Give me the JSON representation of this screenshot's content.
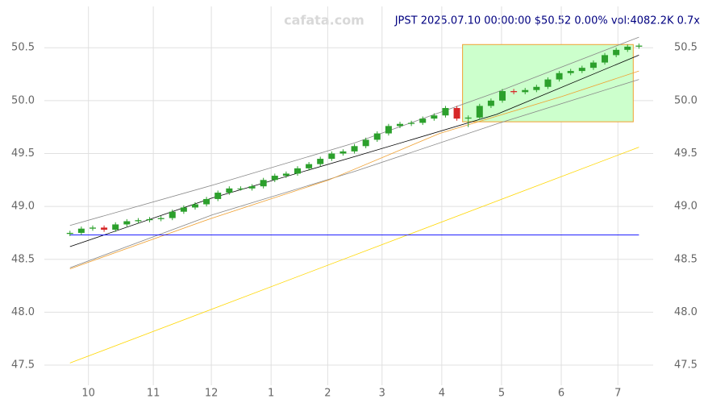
{
  "chart_data": {
    "type": "candlestick",
    "watermark": "cafata.com",
    "title": "JPST 2025.07.10 00:00:00 $50.52 0.00% vol:4082.2K 0.7x",
    "x": [
      0,
      4,
      8,
      12,
      16,
      20,
      24,
      28,
      32,
      36,
      40,
      44,
      48,
      52,
      56,
      60,
      64,
      68,
      72,
      76,
      80,
      84,
      88,
      92,
      96,
      100,
      104,
      108,
      112,
      116,
      120,
      124,
      128,
      132,
      136,
      140,
      144,
      148,
      152,
      156,
      160,
      164,
      168,
      172,
      176,
      180,
      184,
      188,
      192,
      196,
      200
    ],
    "open": [
      48.74,
      48.75,
      48.79,
      48.8,
      48.78,
      48.83,
      48.86,
      48.87,
      48.88,
      48.89,
      48.95,
      48.99,
      49.02,
      49.07,
      49.13,
      49.17,
      49.17,
      49.19,
      49.25,
      49.29,
      49.31,
      49.36,
      49.4,
      49.45,
      49.5,
      49.52,
      49.57,
      49.63,
      49.69,
      49.76,
      49.78,
      49.79,
      49.83,
      49.86,
      49.93,
      49.83,
      49.84,
      49.95,
      50.0,
      50.09,
      50.08,
      50.1,
      50.13,
      50.2,
      50.26,
      50.28,
      50.31,
      50.36,
      50.43,
      50.48,
      50.51
    ],
    "high": [
      48.77,
      48.81,
      48.82,
      48.82,
      48.85,
      48.88,
      48.89,
      48.9,
      48.91,
      48.97,
      49.01,
      49.04,
      49.09,
      49.15,
      49.19,
      49.19,
      49.21,
      49.27,
      49.31,
      49.33,
      49.38,
      49.42,
      49.47,
      49.52,
      49.54,
      49.59,
      49.65,
      49.71,
      49.78,
      49.8,
      49.81,
      49.85,
      49.88,
      49.95,
      49.95,
      49.86,
      49.97,
      50.02,
      50.11,
      50.11,
      50.12,
      50.15,
      50.22,
      50.28,
      50.3,
      50.33,
      50.38,
      50.45,
      50.5,
      50.53,
      50.54
    ],
    "low": [
      48.72,
      48.73,
      48.77,
      48.76,
      48.76,
      48.81,
      48.84,
      48.85,
      48.86,
      48.87,
      48.93,
      48.97,
      49.0,
      49.05,
      49.11,
      49.15,
      49.15,
      49.17,
      49.23,
      49.27,
      49.29,
      49.34,
      49.38,
      49.43,
      49.48,
      49.5,
      49.55,
      49.61,
      49.67,
      49.74,
      49.76,
      49.77,
      49.81,
      49.84,
      49.81,
      49.75,
      49.82,
      49.93,
      49.98,
      50.06,
      50.06,
      50.08,
      50.11,
      50.18,
      50.24,
      50.26,
      50.29,
      50.34,
      50.41,
      50.46,
      50.49
    ],
    "close": [
      48.75,
      48.79,
      48.8,
      48.78,
      48.83,
      48.86,
      48.87,
      48.88,
      48.89,
      48.95,
      48.99,
      49.02,
      49.07,
      49.13,
      49.17,
      49.17,
      49.19,
      49.25,
      49.29,
      49.31,
      49.36,
      49.4,
      49.45,
      49.5,
      49.52,
      49.57,
      49.63,
      49.69,
      49.76,
      49.78,
      49.79,
      49.83,
      49.86,
      49.93,
      49.83,
      49.84,
      49.95,
      50.0,
      50.09,
      50.08,
      50.1,
      50.13,
      50.2,
      50.26,
      50.28,
      50.31,
      50.36,
      50.43,
      50.48,
      50.51,
      50.52
    ],
    "up_color": "#2ca02c",
    "down_color": "#d62728",
    "lines": [
      {
        "color": "#000000",
        "x": [
          0,
          50,
          100,
          150,
          200
        ],
        "values": [
          48.62,
          49.08,
          49.47,
          49.87,
          50.43
        ]
      },
      {
        "color": "#888888",
        "x": [
          0,
          50,
          100,
          150,
          200
        ],
        "values": [
          48.82,
          49.2,
          49.6,
          50.08,
          50.6
        ]
      },
      {
        "color": "#888888",
        "x": [
          0,
          50,
          100,
          150,
          200
        ],
        "values": [
          48.42,
          48.92,
          49.33,
          49.78,
          50.2
        ]
      },
      {
        "color": "#f0a030",
        "x": [
          0,
          50,
          91,
          130,
          173,
          200
        ],
        "values": [
          48.41,
          48.89,
          49.25,
          49.69,
          50.04,
          50.28
        ]
      },
      {
        "color": "#ffd700",
        "x": [
          0,
          200
        ],
        "values": [
          47.52,
          49.56
        ]
      },
      {
        "color": "#0000ff",
        "x": [
          0,
          200
        ],
        "values": [
          48.73,
          48.73
        ]
      }
    ],
    "box": {
      "color": "#ccffcc",
      "edge": "#f0a030",
      "xlim": [
        138,
        198
      ],
      "ylim": [
        49.8,
        50.53
      ]
    },
    "xlim": [
      -9,
      205
    ],
    "ylim": [
      47.31,
      50.89
    ],
    "xticks": [
      {
        "value": 6.5,
        "label": "10"
      },
      {
        "value": 29.3,
        "label": "11"
      },
      {
        "value": 49.7,
        "label": "12"
      },
      {
        "value": 70.7,
        "label": "1"
      },
      {
        "value": 90.6,
        "label": "2"
      },
      {
        "value": 109.7,
        "label": "3"
      },
      {
        "value": 130.7,
        "label": "4"
      },
      {
        "value": 151.7,
        "label": "5"
      },
      {
        "value": 172.7,
        "label": "6"
      },
      {
        "value": 192.6,
        "label": "7"
      }
    ],
    "yticks": [
      47.5,
      {
        "value": 48,
        "label": "48.0"
      },
      48.5,
      {
        "value": 49,
        "label": "49.0"
      },
      49.5,
      {
        "value": 50,
        "label": "50.0"
      },
      50.5
    ],
    "grid": true
  }
}
